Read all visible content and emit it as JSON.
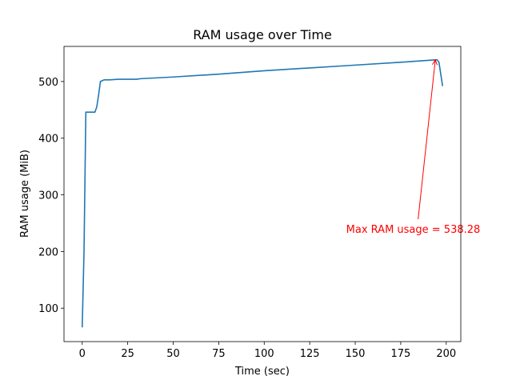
{
  "chart_data": {
    "type": "line",
    "title": "RAM usage over Time",
    "xlabel": "Time (sec)",
    "ylabel": "RAM usage (MiB)",
    "xlim": [
      -10,
      208
    ],
    "ylim": [
      41,
      562
    ],
    "xticks": [
      0,
      25,
      50,
      75,
      100,
      125,
      150,
      175,
      200
    ],
    "yticks": [
      100,
      200,
      300,
      400,
      500
    ],
    "grid": false,
    "series": [
      {
        "color": "#1f77b4",
        "x": [
          0,
          1,
          2,
          7,
          8,
          9,
          10,
          12,
          15,
          20,
          25,
          30,
          32,
          50,
          75,
          100,
          125,
          150,
          175,
          194,
          195,
          196,
          198
        ],
        "y": [
          66,
          200,
          446,
          446,
          455,
          476,
          500,
          503,
          503,
          504,
          504,
          504,
          505,
          508,
          513,
          519,
          524,
          529,
          534,
          538.28,
          538.28,
          534,
          492
        ]
      }
    ],
    "annotation": {
      "text": "Max RAM usage = 538.28",
      "color": "#ff0000",
      "point": [
        194,
        538.28
      ],
      "text_pos": [
        145,
        240
      ]
    }
  }
}
